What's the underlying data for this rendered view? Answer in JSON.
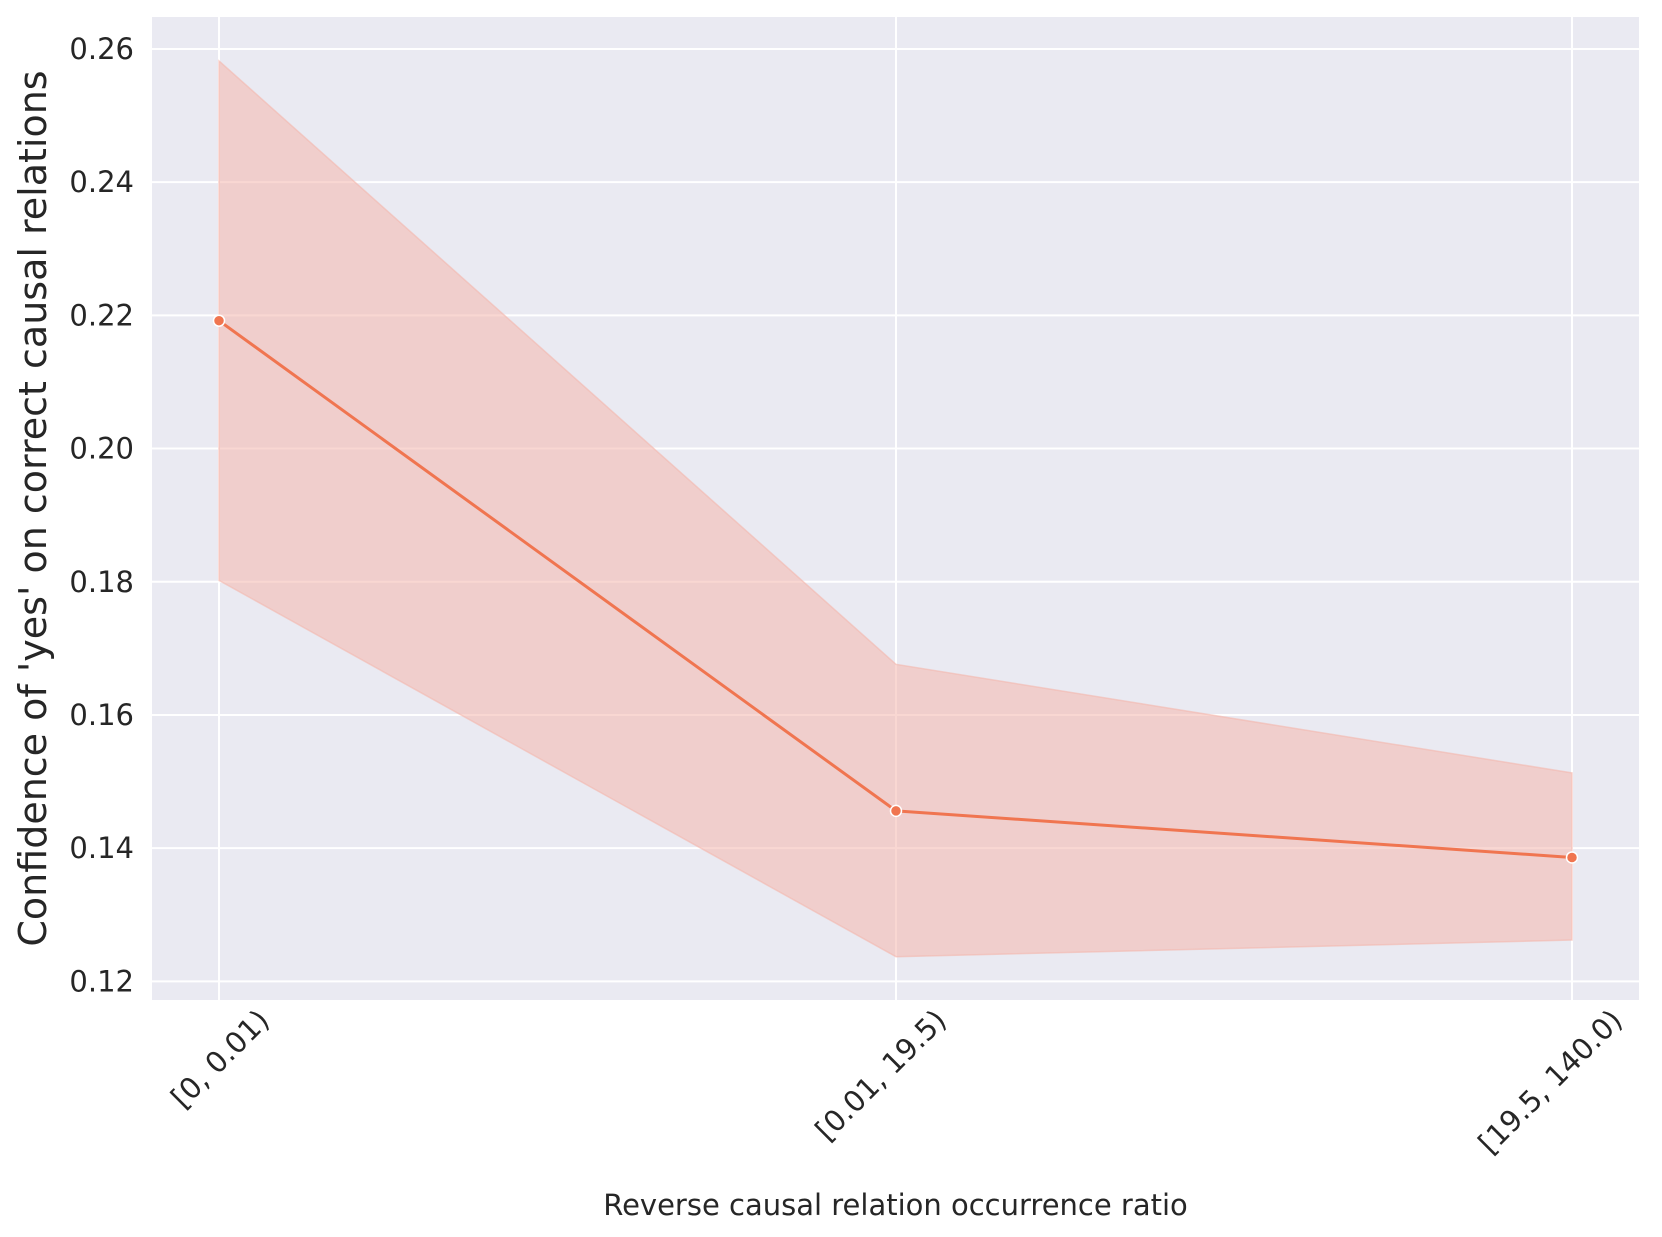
{
  "chart_data": {
    "type": "line",
    "categories": [
      "[0, 0.01)",
      "[0.01, 19.5)",
      "[19.5, 140.0)"
    ],
    "series": [
      {
        "values": [
          0.2192,
          0.1456,
          0.1386
        ],
        "ci_lower": [
          0.1802,
          0.1237,
          0.1262
        ],
        "ci_upper": [
          0.2582,
          0.1676,
          0.1513
        ],
        "color": "#f07550",
        "band_color": "#f4b7ad"
      }
    ],
    "title": "",
    "xlabel": "Reverse causal relation occurrence ratio",
    "ylabel": "Confidence of 'yes' on correct causal relations",
    "ylim": [
      0.1172,
      0.2648
    ],
    "yticks": [
      0.12,
      0.14,
      0.16,
      0.18,
      0.2,
      0.22,
      0.24,
      0.26
    ],
    "ytick_labels": [
      "0.12",
      "0.14",
      "0.16",
      "0.18",
      "0.20",
      "0.22",
      "0.24",
      "0.26"
    ],
    "grid": true,
    "background": "#eaeaf2",
    "grid_color": "#ffffff",
    "x_tick_rotation_deg": 45
  }
}
